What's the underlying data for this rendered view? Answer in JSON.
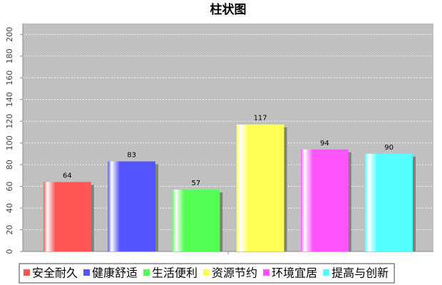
{
  "chart_data": {
    "type": "bar",
    "title": "柱状图",
    "categories": [
      null
    ],
    "series": [
      {
        "name": "安全耐久",
        "color": "#ff5555",
        "values": [
          64
        ]
      },
      {
        "name": "健康舒适",
        "color": "#5555ff",
        "values": [
          83
        ]
      },
      {
        "name": "生活便利",
        "color": "#55ff55",
        "values": [
          57
        ]
      },
      {
        "name": "资源节约",
        "color": "#ffff55",
        "values": [
          117
        ]
      },
      {
        "name": "环境宜居",
        "color": "#ff55ff",
        "values": [
          94
        ]
      },
      {
        "name": "提高与创新",
        "color": "#55ffff",
        "values": [
          90
        ]
      }
    ],
    "ylim": [
      0,
      210
    ],
    "yticks": [
      0,
      20,
      40,
      60,
      80,
      100,
      120,
      140,
      160,
      180,
      200
    ],
    "grid": true,
    "legend": "bottom"
  }
}
